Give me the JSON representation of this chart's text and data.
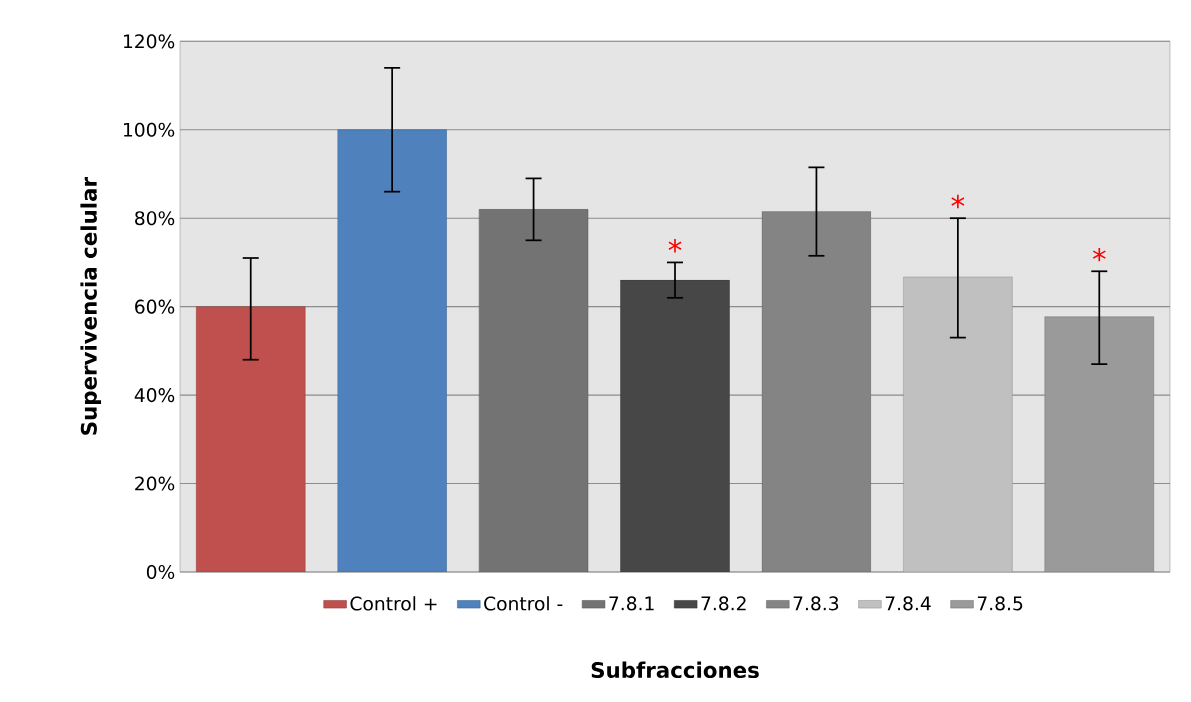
{
  "chart_data": {
    "type": "bar",
    "xlabel": "Subfracciones",
    "ylabel": "Supervivencia celular",
    "categories": [
      null
    ],
    "series": [
      {
        "name": "Control +",
        "color": "#c0504d",
        "values": [
          60
        ],
        "errors": [
          [
            48,
            71
          ]
        ]
      },
      {
        "name": "Control -",
        "color": "#4f81bd",
        "values": [
          100
        ],
        "errors": [
          [
            86,
            114
          ]
        ]
      },
      {
        "name": "7.8.1",
        "color": "#737373",
        "values": [
          82
        ],
        "errors": [
          [
            75,
            89
          ]
        ]
      },
      {
        "name": "7.8.2",
        "color": "#474747",
        "values": [
          66
        ],
        "errors": [
          [
            62,
            70
          ]
        ],
        "value_labels": [
          "*"
        ]
      },
      {
        "name": "7.8.3",
        "color": "#848484",
        "values": [
          81.5
        ],
        "errors": [
          [
            71.5,
            91.5
          ]
        ]
      },
      {
        "name": "7.8.4",
        "color": "#c0c0c0",
        "values": [
          66.7
        ],
        "errors": [
          [
            53,
            80
          ]
        ],
        "value_labels": [
          "*"
        ]
      },
      {
        "name": "7.8.5",
        "color": "#9a9a9a",
        "values": [
          57.7
        ],
        "errors": [
          [
            47,
            68
          ]
        ],
        "value_labels": [
          "*"
        ]
      }
    ],
    "ylim": [
      0,
      120
    ],
    "yticks": [
      {
        "value": 0,
        "label": "0%"
      },
      {
        "value": 20,
        "label": "20%"
      },
      {
        "value": 40,
        "label": "40%"
      },
      {
        "value": 60,
        "label": "60%"
      },
      {
        "value": 80,
        "label": "80%"
      },
      {
        "value": 100,
        "label": "100%"
      },
      {
        "value": 120,
        "label": "120%"
      }
    ],
    "grid": "y",
    "legend": "bottom"
  }
}
